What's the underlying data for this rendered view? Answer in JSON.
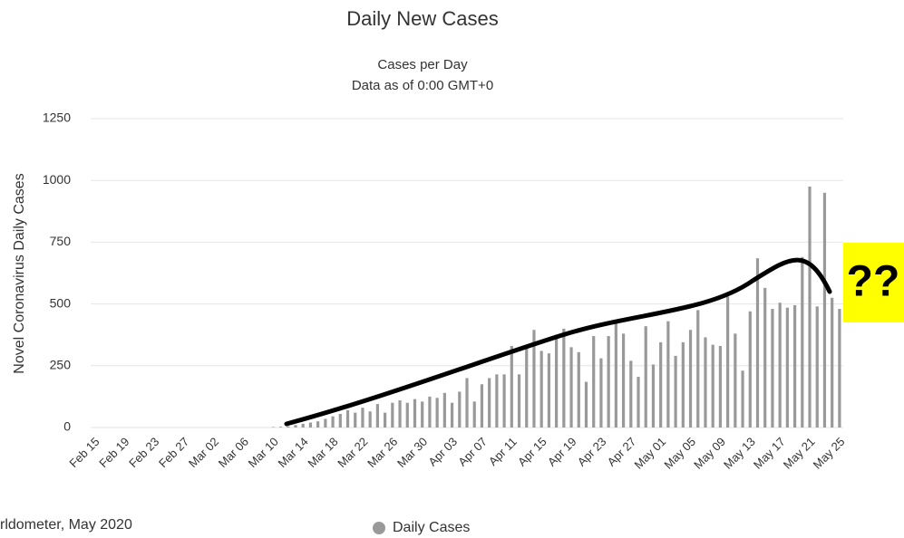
{
  "chart_data": {
    "type": "bar",
    "title": "Daily New Cases",
    "subtitle": [
      "Cases per Day",
      "Data as of 0:00 GMT+0"
    ],
    "y_label": "Novel Coronavirus Daily Cases",
    "source": "rldometer, May 2020",
    "annotation": "??",
    "categories": [
      "Feb 15",
      null,
      null,
      null,
      "Feb 19",
      null,
      null,
      null,
      "Feb 23",
      null,
      null,
      null,
      "Feb 27",
      null,
      null,
      null,
      "Mar 02",
      null,
      null,
      null,
      "Mar 06",
      null,
      null,
      null,
      "Mar 10",
      null,
      null,
      null,
      "Mar 14",
      null,
      null,
      null,
      "Mar 18",
      null,
      null,
      null,
      "Mar 22",
      null,
      null,
      null,
      "Mar 26",
      null,
      null,
      null,
      "Mar 30",
      null,
      null,
      null,
      "Apr 03",
      null,
      null,
      null,
      "Apr 07",
      null,
      null,
      null,
      "Apr 11",
      null,
      null,
      null,
      "Apr 15",
      null,
      null,
      null,
      "Apr 19",
      null,
      null,
      null,
      "Apr 23",
      null,
      null,
      null,
      "Apr 27",
      null,
      null,
      null,
      "May 01",
      null,
      null,
      null,
      "May 05",
      null,
      null,
      null,
      "May 09",
      null,
      null,
      null,
      "May 13",
      null,
      null,
      null,
      "May 17",
      null,
      null,
      null,
      "May 21",
      null,
      null,
      null,
      "May 25"
    ],
    "series": [
      {
        "name": "Daily Cases",
        "color": "#999999",
        "values": [
          0,
          0,
          0,
          0,
          0,
          0,
          0,
          0,
          0,
          0,
          0,
          0,
          0,
          0,
          0,
          0,
          0,
          0,
          0,
          0,
          0,
          0,
          0,
          0,
          2,
          3,
          5,
          10,
          15,
          20,
          25,
          35,
          45,
          55,
          70,
          60,
          80,
          65,
          95,
          60,
          100,
          110,
          100,
          115,
          105,
          125,
          120,
          140,
          100,
          145,
          200,
          105,
          175,
          200,
          215,
          215,
          330,
          215,
          325,
          395,
          310,
          300,
          375,
          400,
          325,
          305,
          185,
          370,
          280,
          370,
          430,
          380,
          270,
          205,
          410,
          255,
          345,
          430,
          290,
          345,
          395,
          475,
          365,
          335,
          330,
          530,
          380,
          230,
          470,
          685,
          565,
          480,
          505,
          485,
          495,
          690,
          975,
          490,
          950,
          525,
          480
        ]
      }
    ],
    "ylim": [
      0,
      1250
    ],
    "yticks": [
      0,
      250,
      500,
      750,
      1000,
      1250
    ],
    "grid": true
  }
}
